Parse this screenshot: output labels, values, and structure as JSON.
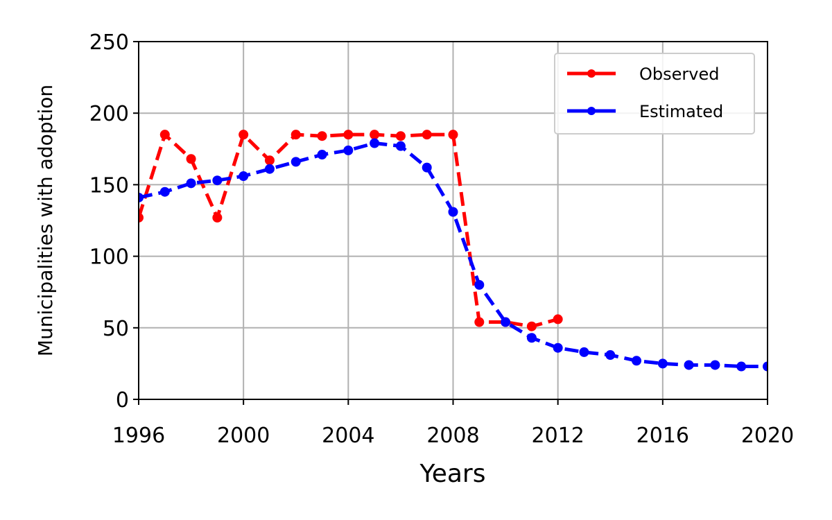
{
  "chart_data": {
    "type": "line",
    "xlabel": "Years",
    "ylabel": "Municipalities with adoption",
    "xlim": [
      1996,
      2020
    ],
    "ylim": [
      0,
      250
    ],
    "xticks": [
      1996,
      2000,
      2004,
      2008,
      2012,
      2016,
      2020
    ],
    "yticks": [
      0,
      50,
      100,
      150,
      200,
      250
    ],
    "grid": true,
    "legend_position": "top-right",
    "series": [
      {
        "name": "Observed",
        "color": "#ff0000",
        "line_style": "dashed",
        "marker": "circle",
        "x": [
          1996,
          1997,
          1998,
          1999,
          2000,
          2001,
          2002,
          2003,
          2004,
          2005,
          2006,
          2007,
          2008,
          2009,
          2010,
          2011,
          2012
        ],
        "y": [
          127,
          185,
          168,
          127,
          185,
          167,
          185,
          184,
          185,
          185,
          184,
          185,
          185,
          54,
          54,
          51,
          56
        ]
      },
      {
        "name": "Estimated",
        "color": "#0000ff",
        "line_style": "dashed",
        "marker": "circle",
        "x": [
          1996,
          1997,
          1998,
          1999,
          2000,
          2001,
          2002,
          2003,
          2004,
          2005,
          2006,
          2007,
          2008,
          2009,
          2010,
          2011,
          2012,
          2013,
          2014,
          2015,
          2016,
          2017,
          2018,
          2019,
          2020
        ],
        "y": [
          141,
          145,
          151,
          153,
          156,
          161,
          166,
          171,
          174,
          179,
          177,
          162,
          131,
          80,
          54,
          43,
          36,
          33,
          31,
          27,
          25,
          24,
          24,
          23,
          23
        ]
      }
    ]
  }
}
